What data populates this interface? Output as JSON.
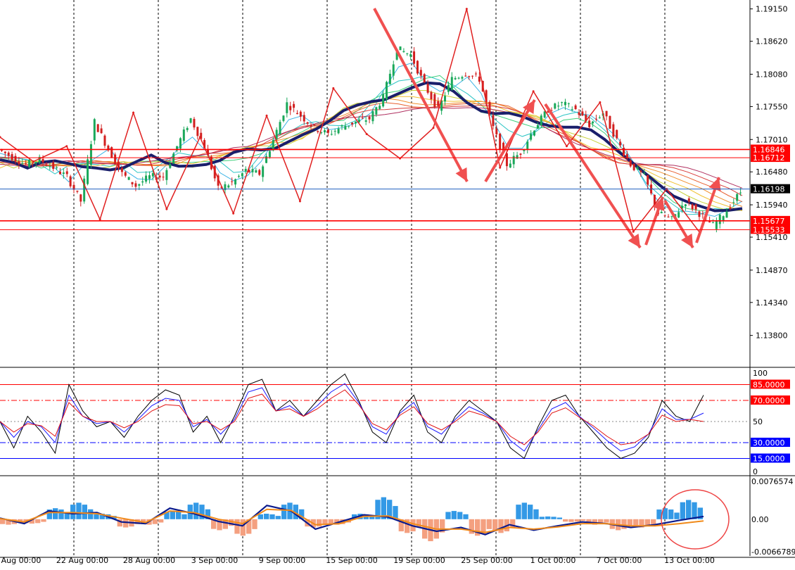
{
  "colors": {
    "background": "#ffffff",
    "candle_up": "#1aa85a",
    "candle_down": "#d21f1f",
    "trend_line": "#e02020",
    "trend_arrow": "#f05050",
    "ma_slow": "#1a1f6b",
    "level_line": "#ff0000",
    "current_line": "#1f5fbf",
    "badge_red": "#ff0000",
    "badge_black": "#000000",
    "badge_blue": "#0000ff",
    "stoch_black": "#000000",
    "stoch_blue": "#1a1aff",
    "stoch_red": "#e01010",
    "hist_pos": "#3399e6",
    "hist_neg": "#f4a080",
    "macd_line": "#0b1a8c",
    "signal_line": "#f08a1a",
    "circle": "#ee4444",
    "grid_vline": "#000000"
  },
  "chart_data": [
    {
      "type": "candlestick",
      "panel": "price",
      "ylim": [
        1.133,
        1.1925
      ],
      "y_tick_labels": [
        "1.19150",
        "1.18620",
        "1.18080",
        "1.17550",
        "1.17010",
        "1.16480",
        "1.15940",
        "1.15410",
        "1.14870",
        "1.14340",
        "1.13800"
      ],
      "x_tick_labels": [
        "Aug 00:00",
        "22 Aug 00:00",
        "28 Aug 00:00",
        "3 Sep 00:00",
        "9 Sep 00:00",
        "15 Sep 00:00",
        "19 Sep 00:00",
        "25 Sep 00:00",
        "1 Oct 00:00",
        "7 Oct 00:00",
        "13 Oct 00:00"
      ],
      "horizontal_levels": [
        {
          "label": "1.16846",
          "value": 1.16846,
          "badge": "red"
        },
        {
          "label": "1.16712",
          "value": 1.16712,
          "badge": "red"
        },
        {
          "label": "1.15677",
          "value": 1.15677,
          "badge": "red"
        },
        {
          "label": "1.15533",
          "value": 1.15533,
          "badge": "red"
        }
      ],
      "current_price": {
        "label": "1.16198",
        "value": 1.16198,
        "badge": "black"
      },
      "zigzag_points": [
        1.1705,
        1.1665,
        1.169,
        1.157,
        1.1745,
        1.1587,
        1.1705,
        1.158,
        1.174,
        1.16,
        1.1785,
        1.171,
        1.167,
        1.172,
        1.1915,
        1.1655,
        1.178,
        1.169,
        1.1762,
        1.155,
        1.162,
        1.1548
      ],
      "close_path": [
        1.1685,
        1.1672,
        1.166,
        1.1668,
        1.1655,
        1.164,
        1.16,
        1.173,
        1.1685,
        1.1645,
        1.1625,
        1.164,
        1.164,
        1.169,
        1.1735,
        1.169,
        1.162,
        1.163,
        1.165,
        1.1645,
        1.17,
        1.176,
        1.174,
        1.172,
        1.171,
        1.1722,
        1.173,
        1.1735,
        1.177,
        1.185,
        1.184,
        1.179,
        1.175,
        1.18,
        1.181,
        1.18,
        1.172,
        1.166,
        1.168,
        1.172,
        1.175,
        1.176,
        1.175,
        1.1725,
        1.1745,
        1.17,
        1.166,
        1.164,
        1.158,
        1.157,
        1.16,
        1.158,
        1.156,
        1.1585,
        1.1615
      ]
    },
    {
      "type": "line",
      "panel": "stochastic",
      "ylim": [
        0,
        100
      ],
      "y_tick_labels": [
        "100",
        "50",
        "0"
      ],
      "levels": [
        {
          "label": "85.0000",
          "value": 85,
          "badge": "red"
        },
        {
          "label": "70.0000",
          "value": 70,
          "badge": "red"
        },
        {
          "label": "30.0000",
          "value": 30,
          "badge": "blue"
        },
        {
          "label": "15.0000",
          "value": 15,
          "badge": "blue"
        }
      ],
      "series": [
        {
          "values": [
            50,
            25,
            55,
            40,
            20,
            85,
            60,
            45,
            50,
            35,
            55,
            70,
            80,
            75,
            40,
            55,
            30,
            55,
            85,
            90,
            60,
            70,
            55,
            70,
            85,
            95,
            70,
            40,
            30,
            60,
            75,
            40,
            30,
            55,
            70,
            60,
            50,
            25,
            15,
            45,
            70,
            75,
            55,
            40,
            25,
            15,
            20,
            35,
            70,
            55,
            50,
            75
          ]
        },
        {
          "values": [
            50,
            35,
            50,
            45,
            30,
            75,
            55,
            48,
            50,
            40,
            52,
            65,
            72,
            70,
            45,
            52,
            38,
            52,
            78,
            82,
            60,
            65,
            55,
            65,
            78,
            86,
            68,
            45,
            38,
            58,
            68,
            45,
            38,
            52,
            64,
            58,
            50,
            32,
            22,
            42,
            62,
            68,
            55,
            44,
            32,
            22,
            26,
            38,
            62,
            52,
            52,
            58
          ]
        },
        {
          "values": [
            50,
            40,
            48,
            46,
            36,
            68,
            55,
            50,
            50,
            44,
            50,
            60,
            66,
            65,
            48,
            50,
            42,
            50,
            72,
            76,
            60,
            62,
            55,
            62,
            72,
            80,
            66,
            48,
            42,
            56,
            64,
            48,
            42,
            50,
            60,
            56,
            50,
            36,
            28,
            40,
            58,
            63,
            54,
            46,
            36,
            28,
            30,
            38,
            56,
            50,
            52,
            50
          ]
        }
      ]
    },
    {
      "type": "bar",
      "panel": "macd",
      "ylim": [
        -0.0066789,
        0.0076574
      ],
      "y_tick_labels": [
        "0.0076574",
        "0.00",
        "-0.0066789"
      ],
      "series": [
        {
          "values": [
            -0.001,
            -0.0008,
            0.002,
            0.003,
            0.001,
            -0.0015,
            -0.001,
            0.0015,
            0.003,
            -0.002,
            -0.003,
            0.001,
            0.003,
            -0.0015,
            -0.001,
            0.001,
            0.004,
            -0.0025,
            -0.004,
            0.0015,
            -0.003,
            -0.0025,
            0.003,
            0.0005,
            -0.0005,
            -0.001,
            -0.002,
            -0.0015,
            0.002,
            0.0035
          ]
        },
        {
          "values": [
            0.0002,
            -0.0008,
            0.0015,
            0.001,
            0.0012,
            -0.0005,
            -0.0008,
            0.002,
            0.001,
            -0.0004,
            -0.0012,
            0.0025,
            0.0015,
            -0.0018,
            -0.0005,
            0.0008,
            0.0004,
            -0.0012,
            -0.0022,
            -0.0015,
            -0.0028,
            -0.001,
            -0.002,
            -0.0012,
            -0.0005,
            -0.0008,
            -0.0015,
            -0.001,
            -0.0002,
            0.0005
          ]
        },
        {
          "values": [
            0.0001,
            -0.0005,
            0.0012,
            0.0012,
            0.001,
            0.0002,
            -0.0006,
            0.0015,
            0.0012,
            0.0,
            -0.0008,
            0.0018,
            0.0016,
            -0.001,
            -0.0008,
            0.0005,
            0.0006,
            -0.0008,
            -0.0018,
            -0.0018,
            -0.0024,
            -0.0015,
            -0.0018,
            -0.0014,
            -0.0008,
            -0.0008,
            -0.0012,
            -0.0012,
            -0.0008,
            -0.0003
          ]
        }
      ]
    }
  ]
}
